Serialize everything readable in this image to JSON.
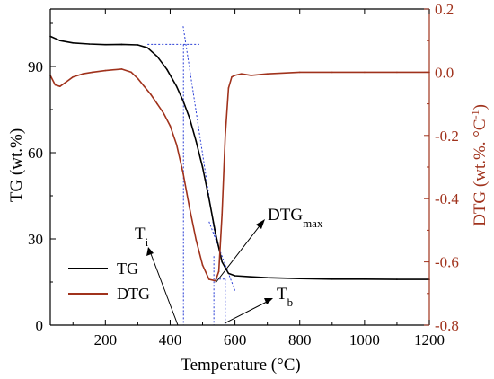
{
  "colors": {
    "tg": "#000000",
    "dtg": "#a0321c",
    "dtg_axis": "#a0321c",
    "guide": "#2b3fd6"
  },
  "chart_data": {
    "type": "line",
    "xlabel": "Temperature (°C)",
    "ylabel_left": "TG (wt.%)",
    "ylabel_right_main": "DTG (wt.%. °C",
    "ylabel_right_sup": "-1",
    "ylabel_right_tail": ")",
    "xlim": [
      30,
      1200
    ],
    "ylim_left": [
      0,
      110
    ],
    "ylim_right": [
      -0.8,
      0.2
    ],
    "x_ticks": [
      200,
      400,
      600,
      800,
      1000,
      1200
    ],
    "y_left_ticks": [
      0,
      30,
      60,
      90
    ],
    "y_right_ticks": [
      0.2,
      0.0,
      -0.2,
      -0.4,
      -0.6,
      -0.8
    ],
    "y_right_tick_labels": [
      "0.2",
      "0.0",
      "-0.2",
      "-0.4",
      "-0.6",
      "-0.8"
    ],
    "legend_position": "bottom-left",
    "series": [
      {
        "name": "TG",
        "axis": "left",
        "x": [
          30,
          60,
          100,
          150,
          200,
          250,
          300,
          330,
          360,
          390,
          420,
          440,
          460,
          480,
          500,
          520,
          540,
          560,
          580,
          600,
          650,
          700,
          800,
          900,
          1000,
          1100,
          1200
        ],
        "y": [
          100.5,
          99.0,
          98.2,
          97.8,
          97.6,
          97.7,
          97.5,
          96.5,
          93.5,
          89.0,
          83.0,
          78.0,
          72.0,
          64.0,
          55.0,
          44.0,
          32.0,
          22.0,
          18.0,
          17.2,
          16.8,
          16.5,
          16.2,
          16.0,
          16.0,
          15.9,
          15.9
        ]
      },
      {
        "name": "DTG",
        "axis": "right",
        "x": [
          30,
          45,
          60,
          80,
          100,
          130,
          160,
          200,
          250,
          280,
          300,
          320,
          340,
          360,
          380,
          400,
          420,
          440,
          460,
          480,
          500,
          520,
          540,
          550,
          560,
          570,
          580,
          590,
          600,
          620,
          650,
          700,
          800,
          900,
          1000,
          1100,
          1200
        ],
        "y": [
          -0.01,
          -0.04,
          -0.045,
          -0.03,
          -0.015,
          -0.005,
          0.0,
          0.005,
          0.01,
          0.0,
          -0.02,
          -0.045,
          -0.07,
          -0.1,
          -0.13,
          -0.17,
          -0.23,
          -0.32,
          -0.43,
          -0.53,
          -0.61,
          -0.655,
          -0.66,
          -0.63,
          -0.45,
          -0.2,
          -0.05,
          -0.015,
          -0.01,
          -0.005,
          -0.01,
          -0.005,
          0.0,
          0.0,
          0.0,
          0.0,
          0.0
        ]
      }
    ],
    "annotations": {
      "Ti": "T",
      "Ti_sub": "i",
      "Tb": "T",
      "Tb_sub": "b",
      "DTGmax": "DTG",
      "DTGmax_sub": "max"
    }
  }
}
